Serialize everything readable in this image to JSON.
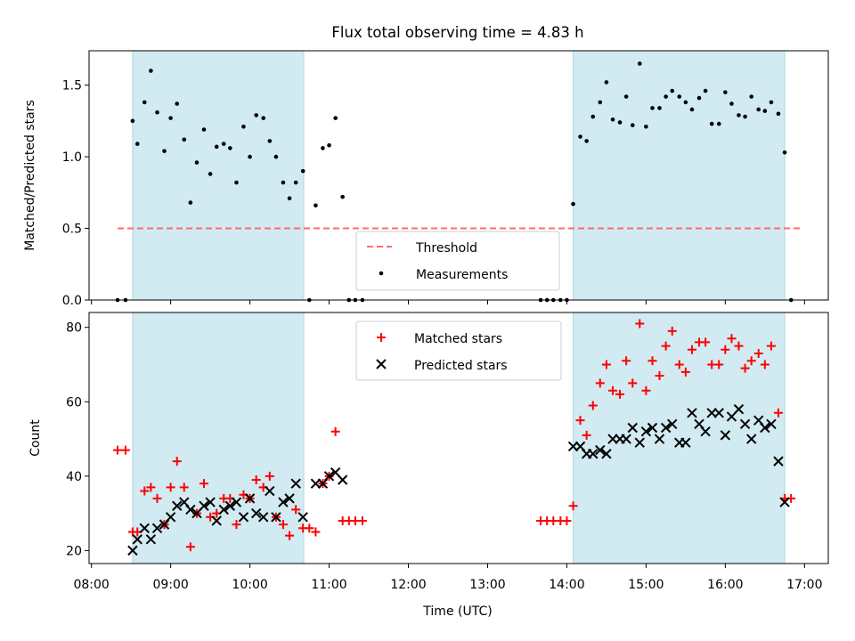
{
  "figure_title": "Flux total observing time = 4.83 h",
  "colors": {
    "shade": "#add8e6",
    "threshold": "#ff6b6b",
    "matched": "#ff0000",
    "predicted": "#000000",
    "measurements": "#000000"
  },
  "x_axis": {
    "label": "Time (UTC)",
    "unit": "hours of day",
    "range": [
      7.97,
      17.3
    ],
    "ticks": [
      8,
      9,
      10,
      11,
      12,
      13,
      14,
      15,
      16,
      17
    ],
    "tick_labels": [
      "08:00",
      "09:00",
      "10:00",
      "11:00",
      "12:00",
      "13:00",
      "14:00",
      "15:00",
      "16:00",
      "17:00"
    ]
  },
  "chart_data": [
    {
      "type": "scatter",
      "panel": "top",
      "ylabel": "Matched/Predicted stars",
      "ylim": [
        0,
        1.74
      ],
      "yticks": [
        0.0,
        0.5,
        1.0,
        1.5
      ],
      "ytick_labels": [
        "0.0",
        "0.5",
        "1.0",
        "1.5"
      ],
      "shaded_spans": [
        [
          8.52,
          10.68
        ],
        [
          14.08,
          16.75
        ]
      ],
      "threshold": {
        "name": "Threshold",
        "value": 0.5,
        "x_range": [
          8.33,
          16.97
        ]
      },
      "legend": {
        "placement": "lower-center",
        "entries": [
          "Threshold",
          "Measurements"
        ]
      },
      "series": [
        {
          "name": "Measurements",
          "x": [
            8.33,
            8.43,
            8.52,
            8.58,
            8.67,
            8.75,
            8.83,
            8.92,
            9.0,
            9.08,
            9.17,
            9.25,
            9.33,
            9.42,
            9.5,
            9.58,
            9.67,
            9.75,
            9.83,
            9.92,
            10.0,
            10.08,
            10.17,
            10.25,
            10.33,
            10.42,
            10.5,
            10.58,
            10.67,
            10.75,
            10.83,
            10.92,
            11.0,
            11.08,
            11.17,
            11.25,
            11.33,
            11.42,
            13.67,
            13.75,
            13.83,
            13.92,
            14.0,
            14.08,
            14.17,
            14.25,
            14.33,
            14.42,
            14.5,
            14.58,
            14.67,
            14.75,
            14.83,
            14.92,
            15.0,
            15.08,
            15.17,
            15.25,
            15.33,
            15.42,
            15.5,
            15.58,
            15.67,
            15.75,
            15.83,
            15.92,
            16.0,
            16.08,
            16.17,
            16.25,
            16.33,
            16.42,
            16.5,
            16.58,
            16.67,
            16.75,
            16.83
          ],
          "y": [
            0,
            0,
            1.25,
            1.09,
            1.38,
            1.6,
            1.31,
            1.04,
            1.27,
            1.37,
            1.12,
            0.68,
            0.96,
            1.19,
            0.88,
            1.07,
            1.09,
            1.06,
            0.82,
            1.21,
            1.0,
            1.29,
            1.27,
            1.11,
            1.0,
            0.82,
            0.71,
            0.82,
            0.9,
            0,
            0.66,
            1.06,
            1.08,
            1.27,
            0.72,
            0,
            0,
            0,
            0,
            0,
            0,
            0,
            0,
            0.67,
            1.14,
            1.11,
            1.28,
            1.38,
            1.52,
            1.26,
            1.24,
            1.42,
            1.22,
            1.65,
            1.21,
            1.34,
            1.34,
            1.42,
            1.46,
            1.42,
            1.38,
            1.33,
            1.41,
            1.46,
            1.23,
            1.23,
            1.45,
            1.37,
            1.29,
            1.28,
            1.42,
            1.33,
            1.32,
            1.38,
            1.3,
            1.03,
            0
          ]
        }
      ]
    },
    {
      "type": "scatter",
      "panel": "bottom",
      "ylabel": "Count",
      "ylim": [
        16.5,
        84
      ],
      "yticks": [
        20,
        40,
        60,
        80
      ],
      "ytick_labels": [
        "20",
        "40",
        "60",
        "80"
      ],
      "shaded_spans": [
        [
          8.52,
          10.68
        ],
        [
          14.08,
          16.75
        ]
      ],
      "legend": {
        "placement": "top-center",
        "entries": [
          "Matched stars",
          "Predicted stars"
        ]
      },
      "series": [
        {
          "name": "Matched stars",
          "marker": "plus",
          "x": [
            8.33,
            8.43,
            8.52,
            8.58,
            8.67,
            8.75,
            8.83,
            8.92,
            9.0,
            9.08,
            9.17,
            9.25,
            9.33,
            9.42,
            9.5,
            9.58,
            9.67,
            9.75,
            9.83,
            9.92,
            10.0,
            10.08,
            10.17,
            10.25,
            10.33,
            10.42,
            10.5,
            10.58,
            10.67,
            10.75,
            10.83,
            10.92,
            11.0,
            11.08,
            11.17,
            11.25,
            11.33,
            11.42,
            13.67,
            13.75,
            13.83,
            13.92,
            14.0,
            14.08,
            14.17,
            14.25,
            14.33,
            14.42,
            14.5,
            14.58,
            14.67,
            14.75,
            14.83,
            14.92,
            15.0,
            15.08,
            15.17,
            15.25,
            15.33,
            15.42,
            15.5,
            15.58,
            15.67,
            15.75,
            15.83,
            15.92,
            16.0,
            16.08,
            16.17,
            16.25,
            16.33,
            16.42,
            16.5,
            16.58,
            16.67,
            16.75,
            16.83
          ],
          "y": [
            47,
            47,
            25,
            25,
            36,
            37,
            34,
            27,
            37,
            44,
            37,
            21,
            30,
            38,
            29,
            30,
            34,
            34,
            27,
            35,
            34,
            39,
            37,
            40,
            29,
            27,
            24,
            31,
            26,
            26,
            25,
            38,
            40,
            52,
            28,
            28,
            28,
            28,
            28,
            28,
            28,
            28,
            28,
            32,
            55,
            51,
            59,
            65,
            70,
            63,
            62,
            71,
            65,
            81,
            63,
            71,
            67,
            75,
            79,
            70,
            68,
            74,
            76,
            76,
            70,
            70,
            74,
            77,
            75,
            69,
            71,
            73,
            70,
            75,
            57,
            34,
            34
          ]
        },
        {
          "name": "Predicted stars",
          "marker": "x",
          "x": [
            8.52,
            8.58,
            8.67,
            8.75,
            8.83,
            8.92,
            9.0,
            9.08,
            9.17,
            9.25,
            9.33,
            9.42,
            9.5,
            9.58,
            9.67,
            9.75,
            9.83,
            9.92,
            10.0,
            10.08,
            10.17,
            10.25,
            10.33,
            10.42,
            10.5,
            10.58,
            10.67,
            10.83,
            10.92,
            11.0,
            11.08,
            11.17,
            14.08,
            14.17,
            14.25,
            14.33,
            14.42,
            14.5,
            14.58,
            14.67,
            14.75,
            14.83,
            14.92,
            15.0,
            15.08,
            15.17,
            15.25,
            15.33,
            15.42,
            15.5,
            15.58,
            15.67,
            15.75,
            15.83,
            15.92,
            16.0,
            16.08,
            16.17,
            16.25,
            16.33,
            16.42,
            16.5,
            16.58,
            16.67,
            16.75
          ],
          "y": [
            20,
            23,
            26,
            23,
            26,
            27,
            29,
            32,
            33,
            31,
            30,
            32,
            33,
            28,
            31,
            32,
            33,
            29,
            34,
            30,
            29,
            36,
            29,
            33,
            34,
            38,
            29,
            38,
            38,
            40,
            41,
            39,
            48,
            48,
            46,
            46,
            47,
            46,
            50,
            50,
            50,
            53,
            49,
            52,
            53,
            50,
            53,
            54,
            49,
            49,
            57,
            54,
            52,
            57,
            57,
            51,
            56,
            58,
            54,
            50,
            55,
            53,
            54,
            44,
            33
          ]
        }
      ]
    }
  ]
}
